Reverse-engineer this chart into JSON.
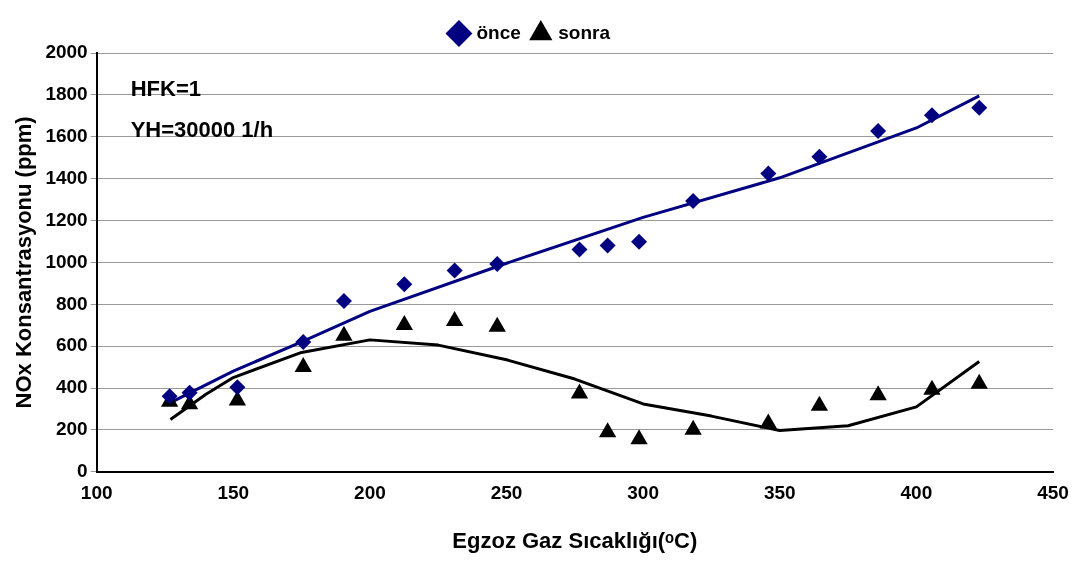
{
  "chart_data": {
    "type": "scatter",
    "xlabel": "Egzoz Gaz Sıcaklığı(ᵒC)",
    "ylabel": "NOx Konsantrasyonu (ppm)",
    "annotations": [
      "HFK=1",
      "YH=30000 1/h"
    ],
    "xlim": [
      100,
      450
    ],
    "xticks": [
      100,
      150,
      200,
      250,
      300,
      350,
      400,
      450
    ],
    "ylim": [
      0,
      2000
    ],
    "yticks": [
      0,
      200,
      400,
      600,
      800,
      1000,
      1200,
      1400,
      1600,
      1800,
      2000
    ],
    "grid": "y",
    "legend": "top",
    "x": [
      126.7,
      134,
      151.5,
      175.6,
      190.5,
      212.6,
      231,
      246.6,
      276.7,
      287,
      298.5,
      318.3,
      345.8,
      364.5,
      386,
      405.7,
      423
    ],
    "series": [
      {
        "name": "önce",
        "type": "scatter",
        "marker": "diamond",
        "color": "#000080",
        "values": [
          361,
          377,
          404,
          620,
          816,
          896,
          961,
          992,
          1062,
          1081,
          1099,
          1293,
          1424,
          1504,
          1627,
          1703,
          1739
        ]
      },
      {
        "name": "sonra",
        "type": "scatter",
        "marker": "triangle",
        "color": "#000000",
        "values": [
          335,
          323,
          340,
          501,
          650,
          701,
          720,
          693,
          374,
          189,
          155,
          201,
          231,
          315,
          366,
          392,
          420
        ]
      },
      {
        "type": "line",
        "marker": "none",
        "color": "#000080",
        "x": [
          127,
          150,
          175,
          200,
          250,
          300,
          350,
          400,
          423
        ],
        "values": [
          330,
          481,
          620,
          766,
          996,
          1215,
          1404,
          1642,
          1795
        ]
      },
      {
        "type": "line",
        "marker": "none",
        "color": "#000000",
        "x": [
          127,
          140,
          150,
          175,
          200,
          225,
          250,
          275,
          300,
          325,
          350,
          375,
          400,
          423
        ],
        "values": [
          250,
          370,
          450,
          570,
          630,
          605,
          535,
          443,
          324,
          266,
          197,
          220,
          310,
          527
        ]
      }
    ]
  }
}
